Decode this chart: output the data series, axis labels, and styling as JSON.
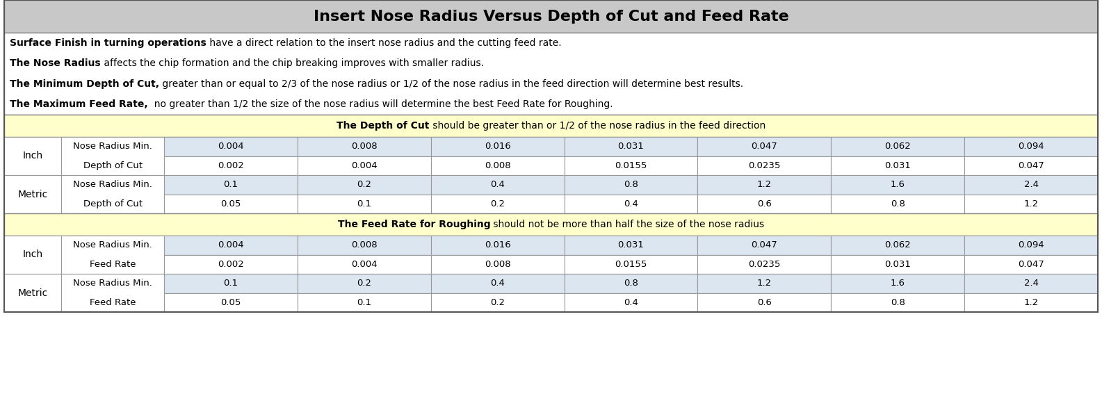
{
  "title": "Insert Nose Radius Versus Depth of Cut and Feed Rate",
  "intro_lines": [
    {
      "bold": "Surface Finish in turning operations",
      "normal": " have a direct relation to the insert nose radius and the cutting feed rate."
    },
    {
      "bold": "The Nose Radius",
      "normal": " affects the chip formation and the chip breaking improves with smaller radius."
    },
    {
      "bold": "The Minimum Depth of Cut,",
      "normal": " greater than or equal to 2/3 of the nose radius or 1/2 of the nose radius in the feed direction will determine best results."
    },
    {
      "bold": "The Maximum Feed Rate,",
      "normal": "  no greater than 1/2 the size of the nose radius will determine the best Feed Rate for Roughing."
    }
  ],
  "section1_parts": [
    {
      "text": "The Depth of Cut",
      "bold": true
    },
    {
      "text": " should be greater than or 1/2 of the nose radius in the feed direction",
      "bold": false
    }
  ],
  "section2_parts": [
    {
      "text": "The Feed Rate",
      "bold": true
    },
    {
      "text": " for Roughing",
      "bold": true
    },
    {
      "text": " should not be more than half the size of the nose radius",
      "bold": false
    }
  ],
  "col_values_inch_top": [
    "0.004",
    "0.008",
    "0.016",
    "0.031",
    "0.047",
    "0.062",
    "0.094"
  ],
  "col_values_inch_bot": [
    "0.002",
    "0.004",
    "0.008",
    "0.0155",
    "0.0235",
    "0.031",
    "0.047"
  ],
  "col_values_metric_top": [
    "0.1",
    "0.2",
    "0.4",
    "0.8",
    "1.2",
    "1.6",
    "2.4"
  ],
  "col_values_metric_bot": [
    "0.05",
    "0.1",
    "0.2",
    "0.4",
    "0.6",
    "0.8",
    "1.2"
  ],
  "bg_title": "#c8c8c8",
  "bg_section_header": "#ffffcc",
  "bg_white": "#ffffff",
  "bg_light_blue": "#dce6f1",
  "title_fontsize": 16,
  "intro_fontsize": 10,
  "section_header_fontsize": 10,
  "data_fontsize": 9.5,
  "label_fontsize": 9.5,
  "unit_fontsize": 10
}
